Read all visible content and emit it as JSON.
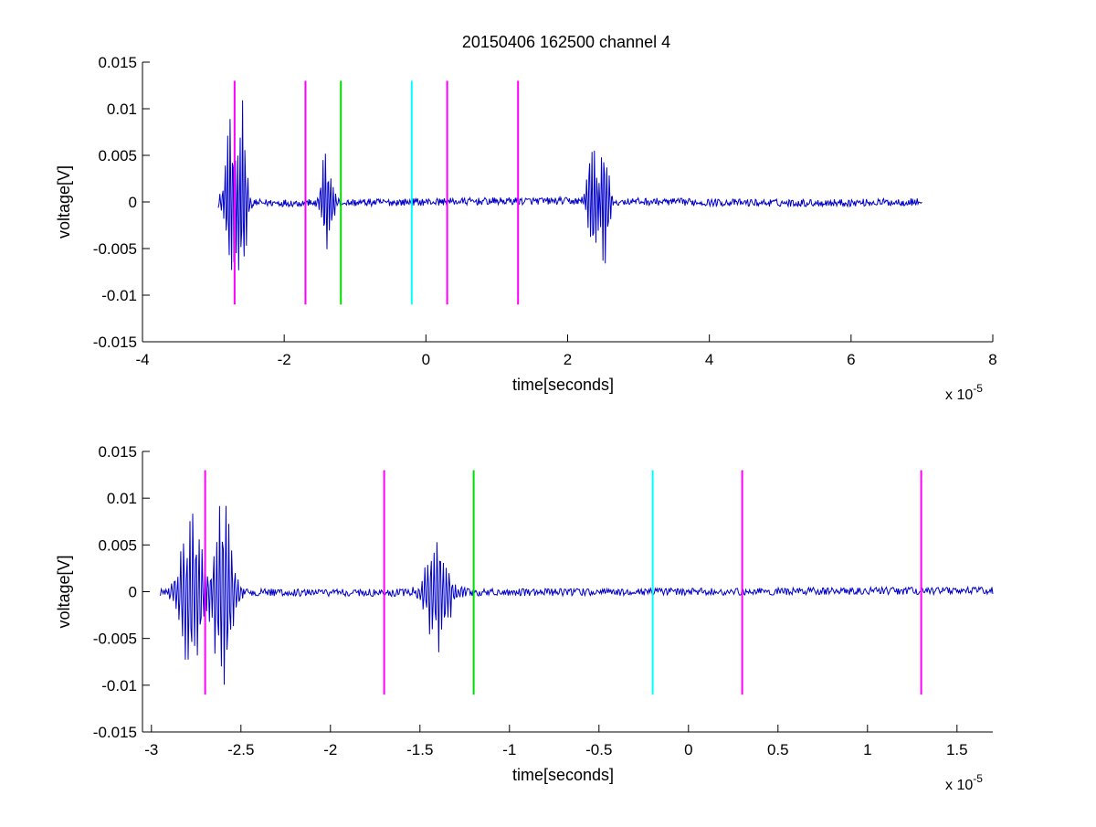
{
  "figure": {
    "title": "20150406 162500 channel 4"
  },
  "colors": {
    "trace": "#0000c8",
    "magenta": "#ff00ff",
    "green": "#00dd00",
    "cyan": "#00ffff",
    "axes": "#000000"
  },
  "chart_data": [
    {
      "type": "line",
      "title": "20150406 162500 channel 4",
      "xlabel": "time[seconds]",
      "ylabel": "voltage[V]",
      "x_multiplier_label": "x 10",
      "x_multiplier_exponent": "-5",
      "xlim": [
        -4,
        8
      ],
      "ylim": [
        -0.015,
        0.015
      ],
      "x_ticks": [
        -4,
        -2,
        0,
        2,
        4,
        6,
        8
      ],
      "x_tick_labels": [
        "-4",
        "-2",
        "0",
        "2",
        "4",
        "6",
        "8"
      ],
      "y_ticks": [
        0.015,
        0.01,
        0.005,
        0,
        -0.005,
        -0.01,
        -0.015
      ],
      "y_tick_labels": [
        "0.015",
        "0.01",
        "0.005",
        "0",
        "-0.005",
        "-0.01",
        "-0.015"
      ],
      "grid": false,
      "series": [
        {
          "color": "trace",
          "x_range": [
            -2.93,
            7.0
          ],
          "bursts": [
            {
              "center": -2.75,
              "amp": 0.0105,
              "width": 0.12
            },
            {
              "center": -2.6,
              "amp": 0.0118,
              "width": 0.1
            },
            {
              "center": -1.4,
              "amp": 0.0065,
              "width": 0.12
            },
            {
              "center": 2.35,
              "amp": 0.0085,
              "width": 0.1
            },
            {
              "center": 2.52,
              "amp": 0.0082,
              "width": 0.1
            }
          ],
          "noise_amplitude": 0.0004
        }
      ],
      "markers": [
        {
          "x": -2.7,
          "color": "magenta",
          "y_range": [
            -0.011,
            0.013
          ]
        },
        {
          "x": -1.7,
          "color": "magenta",
          "y_range": [
            -0.011,
            0.013
          ]
        },
        {
          "x": -1.2,
          "color": "green",
          "y_range": [
            -0.011,
            0.013
          ]
        },
        {
          "x": -0.2,
          "color": "cyan",
          "y_range": [
            -0.011,
            0.013
          ]
        },
        {
          "x": 0.3,
          "color": "magenta",
          "y_range": [
            -0.011,
            0.013
          ]
        },
        {
          "x": 1.3,
          "color": "magenta",
          "y_range": [
            -0.011,
            0.013
          ]
        }
      ]
    },
    {
      "type": "line",
      "title": "",
      "xlabel": "time[seconds]",
      "ylabel": "voltage[V]",
      "x_multiplier_label": "x 10",
      "x_multiplier_exponent": "-5",
      "xlim": [
        -3.05,
        1.7
      ],
      "ylim": [
        -0.015,
        0.015
      ],
      "x_ticks": [
        -3,
        -2.5,
        -2,
        -1.5,
        -1,
        -0.5,
        0,
        0.5,
        1,
        1.5
      ],
      "x_tick_labels": [
        "-3",
        "-2.5",
        "-2",
        "-1.5",
        "-1",
        "-0.5",
        "0",
        "0.5",
        "1",
        "1.5"
      ],
      "y_ticks": [
        0.015,
        0.01,
        0.005,
        0,
        -0.005,
        -0.01,
        -0.015
      ],
      "y_tick_labels": [
        "0.015",
        "0.01",
        "0.005",
        "0",
        "-0.005",
        "-0.01",
        "-0.015"
      ],
      "grid": false,
      "series": [
        {
          "color": "trace",
          "x_range": [
            -2.95,
            1.7
          ],
          "bursts": [
            {
              "center": -2.77,
              "amp": 0.01,
              "width": 0.1
            },
            {
              "center": -2.6,
              "amp": 0.0118,
              "width": 0.08
            },
            {
              "center": -1.4,
              "amp": 0.0068,
              "width": 0.1
            }
          ],
          "noise_amplitude": 0.0004
        }
      ],
      "markers": [
        {
          "x": -2.7,
          "color": "magenta",
          "y_range": [
            -0.011,
            0.013
          ]
        },
        {
          "x": -1.7,
          "color": "magenta",
          "y_range": [
            -0.011,
            0.013
          ]
        },
        {
          "x": -1.2,
          "color": "green",
          "y_range": [
            -0.011,
            0.013
          ]
        },
        {
          "x": -0.2,
          "color": "cyan",
          "y_range": [
            -0.011,
            0.013
          ]
        },
        {
          "x": 0.3,
          "color": "magenta",
          "y_range": [
            -0.011,
            0.013
          ]
        },
        {
          "x": 1.3,
          "color": "magenta",
          "y_range": [
            -0.011,
            0.013
          ]
        }
      ]
    }
  ]
}
